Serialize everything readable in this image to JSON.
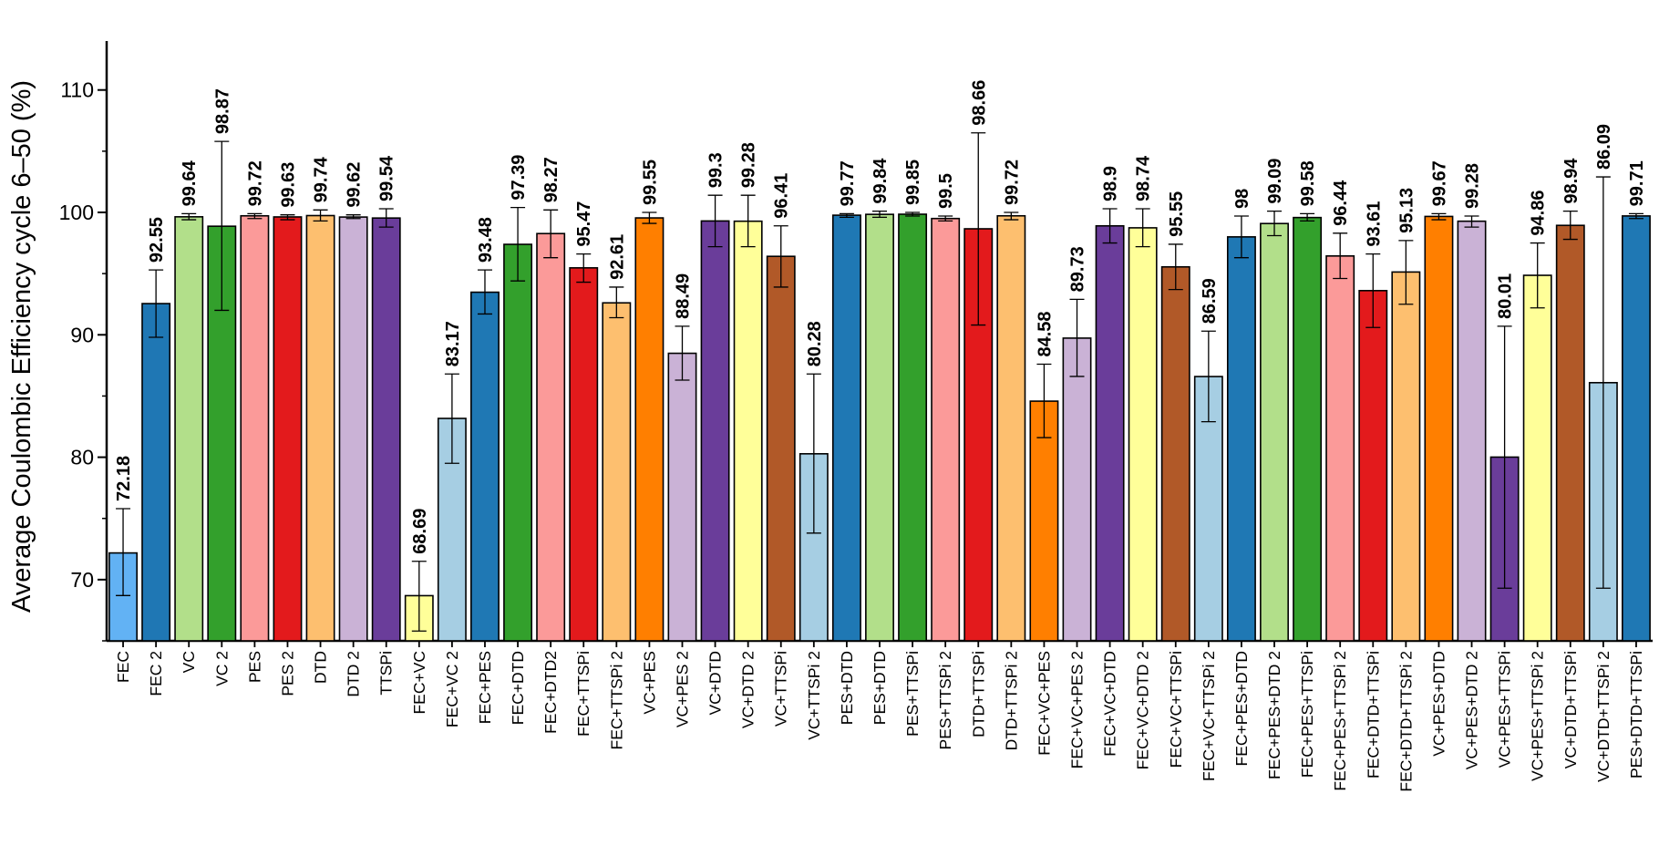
{
  "chart_data": {
    "type": "bar",
    "title": "",
    "xlabel": "",
    "ylabel": "Average Coulombic Efficiency cycle 6–50 (%)",
    "ylim": [
      65,
      114
    ],
    "yticks": [
      70,
      80,
      90,
      100,
      110
    ],
    "grid": false,
    "bars": [
      {
        "category": "FEC",
        "value": 72.18,
        "label": "72.18",
        "error": [
          68.7,
          75.8
        ],
        "color": "#62B2F4"
      },
      {
        "category": "FEC 2",
        "value": 92.55,
        "label": "92.55",
        "error": [
          89.8,
          95.3
        ],
        "color": "#1F77B4"
      },
      {
        "category": "VC",
        "value": 99.64,
        "label": "99.64",
        "error": [
          99.4,
          99.9
        ],
        "color": "#B2DF8A"
      },
      {
        "category": "VC 2",
        "value": 98.87,
        "label": "98.87",
        "error": [
          92.0,
          105.8
        ],
        "color": "#33A02C"
      },
      {
        "category": "PES",
        "value": 99.72,
        "label": "99.72",
        "error": [
          99.5,
          99.9
        ],
        "color": "#FB9A99"
      },
      {
        "category": "PES 2",
        "value": 99.63,
        "label": "99.63",
        "error": [
          99.4,
          99.8
        ],
        "color": "#E31A1C"
      },
      {
        "category": "DTD",
        "value": 99.74,
        "label": "99.74",
        "error": [
          99.3,
          100.2
        ],
        "color": "#FDBF6F"
      },
      {
        "category": "DTD 2",
        "value": 99.62,
        "label": "99.62",
        "error": [
          99.5,
          99.8
        ],
        "color": "#CAB2D6"
      },
      {
        "category": "TTSPi",
        "value": 99.54,
        "label": "99.54",
        "error": [
          98.8,
          100.3
        ],
        "color": "#6A3D9A"
      },
      {
        "category": "FEC+VC",
        "value": 68.69,
        "label": "68.69",
        "error": [
          65.8,
          71.5
        ],
        "color": "#FFFF99"
      },
      {
        "category": "FEC+VC 2",
        "value": 83.17,
        "label": "83.17",
        "error": [
          79.5,
          86.8
        ],
        "color": "#A6CEE3"
      },
      {
        "category": "FEC+PES",
        "value": 93.48,
        "label": "93.48",
        "error": [
          91.7,
          95.3
        ],
        "color": "#1F78B4"
      },
      {
        "category": "FEC+DTD",
        "value": 97.39,
        "label": "97.39",
        "error": [
          94.4,
          100.4
        ],
        "color": "#33A02C"
      },
      {
        "category": "FEC+DTD2",
        "value": 98.27,
        "label": "98.27",
        "error": [
          96.3,
          100.2
        ],
        "color": "#FB9A99"
      },
      {
        "category": "FEC+TTSPi",
        "value": 95.47,
        "label": "95.47",
        "error": [
          94.3,
          96.6
        ],
        "color": "#E31A1C"
      },
      {
        "category": "FEC+TTSPi 2",
        "value": 92.61,
        "label": "92.61",
        "error": [
          91.4,
          93.9
        ],
        "color": "#FDBF6F"
      },
      {
        "category": "VC+PES",
        "value": 99.55,
        "label": "99.55",
        "error": [
          99.1,
          100.0
        ],
        "color": "#FF7F00"
      },
      {
        "category": "VC+PES 2",
        "value": 88.49,
        "label": "88.49",
        "error": [
          86.3,
          90.7
        ],
        "color": "#CAB2D6"
      },
      {
        "category": "VC+DTD",
        "value": 99.3,
        "label": "99.3",
        "error": [
          97.2,
          101.4
        ],
        "color": "#6A3D9A"
      },
      {
        "category": "VC+DTD 2",
        "value": 99.28,
        "label": "99.28",
        "error": [
          97.2,
          101.4
        ],
        "color": "#FFFF99"
      },
      {
        "category": "VC+TTSPi",
        "value": 96.41,
        "label": "96.41",
        "error": [
          93.9,
          98.9
        ],
        "color": "#B15928"
      },
      {
        "category": "VC+TTSPi 2",
        "value": 80.28,
        "label": "80.28",
        "error": [
          73.8,
          86.8
        ],
        "color": "#A6CEE3"
      },
      {
        "category": "PES+DTD",
        "value": 99.77,
        "label": "99.77",
        "error": [
          99.6,
          99.9
        ],
        "color": "#1F78B4"
      },
      {
        "category": "PES+DTD",
        "value": 99.84,
        "label": "99.84",
        "error": [
          99.6,
          100.1
        ],
        "color": "#B2DF8A"
      },
      {
        "category": "PES+TTSPi",
        "value": 99.85,
        "label": "99.85",
        "error": [
          99.7,
          100.0
        ],
        "color": "#33A02C"
      },
      {
        "category": "PES+TTSPi 2",
        "value": 99.5,
        "label": "99.5",
        "error": [
          99.3,
          99.7
        ],
        "color": "#FB9A99"
      },
      {
        "category": "DTD+TTSPi",
        "value": 98.66,
        "label": "98.66",
        "error": [
          90.8,
          106.5
        ],
        "color": "#E31A1C"
      },
      {
        "category": "DTD+TTSPi 2",
        "value": 99.72,
        "label": "99.72",
        "error": [
          99.4,
          100.0
        ],
        "color": "#FDBF6F"
      },
      {
        "category": "FEC+VC+PES",
        "value": 84.58,
        "label": "84.58",
        "error": [
          81.6,
          87.6
        ],
        "color": "#FF7F00"
      },
      {
        "category": "FEC+VC+PES 2",
        "value": 89.73,
        "label": "89.73",
        "error": [
          86.6,
          92.9
        ],
        "color": "#CAB2D6"
      },
      {
        "category": "FEC+VC+DTD",
        "value": 98.9,
        "label": "98.9",
        "error": [
          97.5,
          100.3
        ],
        "color": "#6A3D9A"
      },
      {
        "category": "FEC+VC+DTD 2",
        "value": 98.74,
        "label": "98.74",
        "error": [
          97.2,
          100.3
        ],
        "color": "#FFFF99"
      },
      {
        "category": "FEC+VC+TTSPi",
        "value": 95.55,
        "label": "95.55",
        "error": [
          93.7,
          97.4
        ],
        "color": "#B15928"
      },
      {
        "category": "FEC+VC+TTSPi 2",
        "value": 86.59,
        "label": "86.59",
        "error": [
          82.9,
          90.3
        ],
        "color": "#A6CEE3"
      },
      {
        "category": "FEC+PES+DTD",
        "value": 98.0,
        "label": "98",
        "error": [
          96.3,
          99.7
        ],
        "color": "#1F78B4"
      },
      {
        "category": "FEC+PES+DTD 2",
        "value": 99.09,
        "label": "99.09",
        "error": [
          98.1,
          100.1
        ],
        "color": "#B2DF8A"
      },
      {
        "category": "FEC+PES+TTSPi",
        "value": 99.58,
        "label": "99.58",
        "error": [
          99.3,
          99.9
        ],
        "color": "#33A02C"
      },
      {
        "category": "FEC+PES+TTSPi 2",
        "value": 96.44,
        "label": "96.44",
        "error": [
          94.6,
          98.3
        ],
        "color": "#FB9A99"
      },
      {
        "category": "FEC+DTD+TTSPi",
        "value": 93.61,
        "label": "93.61",
        "error": [
          90.6,
          96.6
        ],
        "color": "#E31A1C"
      },
      {
        "category": "FEC+DTD+TTSPi 2",
        "value": 95.13,
        "label": "95.13",
        "error": [
          92.5,
          97.7
        ],
        "color": "#FDBF6F"
      },
      {
        "category": "VC+PES+DTD",
        "value": 99.67,
        "label": "99.67",
        "error": [
          99.4,
          99.9
        ],
        "color": "#FF7F00"
      },
      {
        "category": "VC+PES+DTD 2",
        "value": 99.28,
        "label": "99.28",
        "error": [
          98.8,
          99.7
        ],
        "color": "#CAB2D6"
      },
      {
        "category": "VC+PES+TTSPi",
        "value": 80.01,
        "label": "80.01",
        "error": [
          69.3,
          90.7
        ],
        "color": "#6A3D9A"
      },
      {
        "category": "VC+PES+TTSPi 2",
        "value": 94.86,
        "label": "94.86",
        "error": [
          92.2,
          97.5
        ],
        "color": "#FFFF99"
      },
      {
        "category": "VC+DTD+TTSPi",
        "value": 98.94,
        "label": "98.94",
        "error": [
          97.8,
          100.1
        ],
        "color": "#B15928"
      },
      {
        "category": "VC+DTD+TTSPi 2",
        "value": 86.09,
        "label": "86.09",
        "error": [
          69.3,
          102.9
        ],
        "color": "#A6CEE3"
      },
      {
        "category": "PES+DTD+TTSPi",
        "value": 99.71,
        "label": "99.71",
        "error": [
          99.5,
          99.9
        ],
        "color": "#1F78B4"
      }
    ]
  }
}
